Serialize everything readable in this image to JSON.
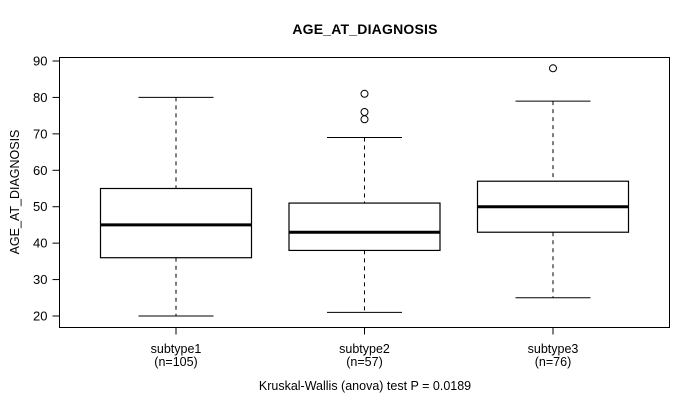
{
  "chart_data": {
    "type": "boxplot",
    "title": "AGE_AT_DIAGNOSIS",
    "ylabel": "AGE_AT_DIAGNOSIS",
    "xlabel": "",
    "caption": "Kruskal-Wallis (anova) test P = 0.0189",
    "p_value": 0.0189,
    "ylim": [
      20,
      90
    ],
    "yticks": [
      20,
      30,
      40,
      50,
      60,
      70,
      80,
      90
    ],
    "grid": false,
    "legend": null,
    "groups": [
      {
        "label": "subtype1",
        "sublabel": "(n=105)",
        "n": 105,
        "whisker_low": 20,
        "q1": 36,
        "median": 45,
        "q3": 55,
        "whisker_high": 80,
        "outliers": []
      },
      {
        "label": "subtype2",
        "sublabel": "(n=57)",
        "n": 57,
        "whisker_low": 21,
        "q1": 38,
        "median": 43,
        "q3": 51,
        "whisker_high": 69,
        "outliers": [
          74,
          76,
          81
        ]
      },
      {
        "label": "subtype3",
        "sublabel": "(n=76)",
        "n": 76,
        "whisker_low": 25,
        "q1": 43,
        "median": 50,
        "q3": 57,
        "whisker_high": 79,
        "outliers": [
          88
        ]
      }
    ],
    "colors": {
      "line": "#000000",
      "box_fill": "#ffffff",
      "background": "#ffffff"
    }
  }
}
